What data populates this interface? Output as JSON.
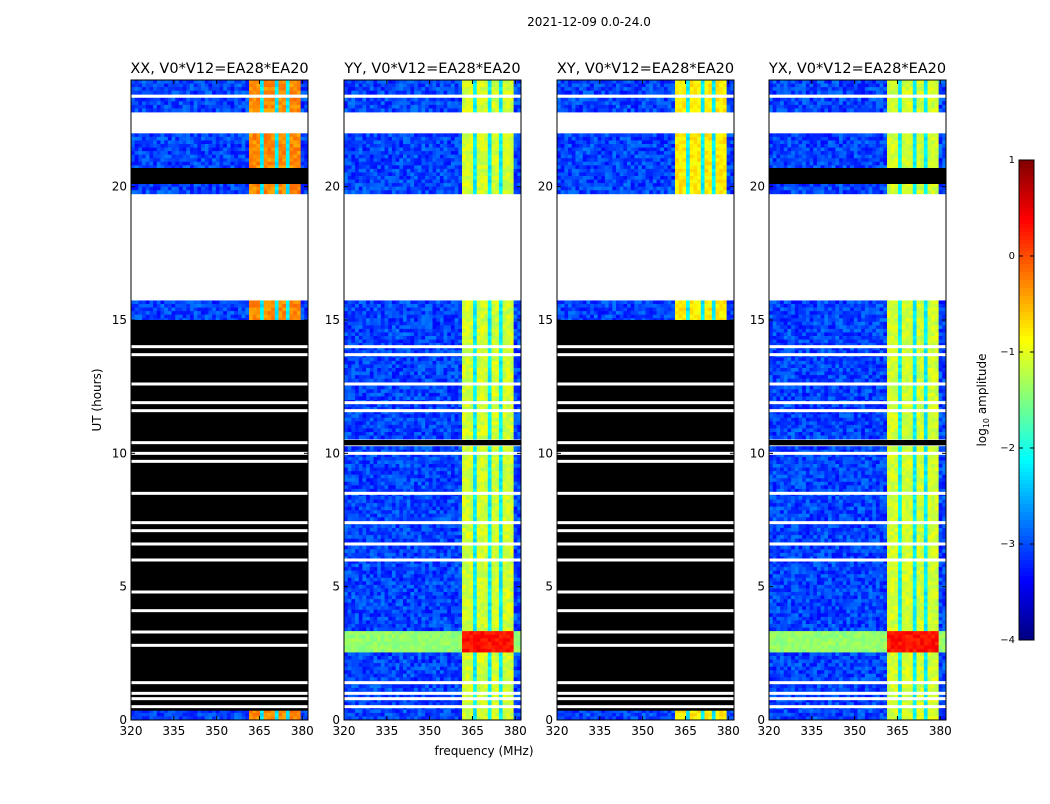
{
  "figure": {
    "suptitle": "2021-12-09 0.0-24.0",
    "ylabel": "UT (hours)",
    "xlabel": "frequency (MHz)"
  },
  "chart_data": {
    "type": "heatmap",
    "x_range": [
      320,
      382
    ],
    "y_range": [
      0,
      24
    ],
    "x_ticks": [
      320,
      335,
      350,
      365,
      380
    ],
    "y_ticks": [
      0,
      5,
      10,
      15,
      20
    ],
    "colormap": "jet",
    "colorbar": {
      "label_prefix": "log",
      "label_subscript": "10",
      "label_suffix": " amplitude",
      "range": [
        -4,
        1
      ],
      "ticks": [
        {
          "value": 1,
          "label": "1"
        },
        {
          "value": 0,
          "label": "0"
        },
        {
          "value": -1,
          "label": "−1"
        },
        {
          "value": -2,
          "label": "−2"
        },
        {
          "value": -3,
          "label": "−3"
        },
        {
          "value": -4,
          "label": "−4"
        }
      ]
    },
    "rfi_band_mhz": [
      361,
      380
    ],
    "rfi_channels_mhz": [
      366,
      371,
      375
    ],
    "panels": [
      {
        "title": "XX, V0*V12=EA28*EA20",
        "data_mask": [
          [
            0,
            0.35
          ],
          [
            15.0,
            15.8
          ],
          [
            19.8,
            22.0
          ],
          [
            22.8,
            23.3
          ],
          [
            23.5,
            24.0
          ]
        ],
        "black_ranges": [
          [
            0.35,
            15.0
          ],
          [
            20.1,
            20.7
          ]
        ],
        "white_lines": [
          0.5,
          0.8,
          1.0,
          1.4,
          2.8,
          3.3,
          4.1,
          4.8,
          6.0,
          6.6,
          7.1,
          7.4,
          8.5,
          9.7,
          10.0,
          10.4,
          11.6,
          11.9,
          12.6,
          13.7,
          14.0
        ],
        "rfi_amplitude": -0.3,
        "bright_rows": []
      },
      {
        "title": "YY, V0*V12=EA28*EA20",
        "data_mask": [
          [
            0,
            15.0
          ],
          [
            15.0,
            15.8
          ],
          [
            19.8,
            22.0
          ],
          [
            22.8,
            23.3
          ],
          [
            23.5,
            24.0
          ]
        ],
        "black_ranges": [
          [
            10.3,
            10.5
          ]
        ],
        "white_lines": [
          0.5,
          0.8,
          1.0,
          1.4,
          6.0,
          6.6,
          7.4,
          8.5,
          10.0,
          11.6,
          11.9,
          12.6,
          13.7,
          14.0
        ],
        "rfi_amplitude": -1.1,
        "bright_rows": [
          [
            2.6,
            3.3
          ]
        ]
      },
      {
        "title": "XY, V0*V12=EA28*EA20",
        "data_mask": [
          [
            0,
            0.35
          ],
          [
            15.0,
            15.8
          ],
          [
            19.8,
            22.0
          ],
          [
            22.8,
            23.3
          ],
          [
            23.5,
            24.0
          ]
        ],
        "black_ranges": [
          [
            0.35,
            15.0
          ]
        ],
        "white_lines": [
          0.5,
          0.8,
          1.0,
          1.4,
          2.8,
          3.3,
          4.1,
          4.8,
          6.0,
          6.6,
          7.1,
          7.4,
          8.5,
          9.7,
          10.0,
          10.4,
          11.6,
          11.9,
          12.6,
          13.7,
          14.0
        ],
        "rfi_amplitude": -0.8,
        "bright_rows": []
      },
      {
        "title": "YX, V0*V12=EA28*EA20",
        "data_mask": [
          [
            0,
            15.0
          ],
          [
            15.0,
            15.8
          ],
          [
            19.8,
            22.0
          ],
          [
            22.8,
            23.3
          ],
          [
            23.5,
            24.0
          ]
        ],
        "black_ranges": [
          [
            20.1,
            20.7
          ],
          [
            10.3,
            10.5
          ]
        ],
        "white_lines": [
          0.5,
          0.8,
          1.0,
          1.4,
          6.0,
          6.6,
          7.4,
          8.5,
          10.0,
          11.6,
          11.9,
          12.6,
          13.7,
          14.0
        ],
        "rfi_amplitude": -1.1,
        "bright_rows": [
          [
            2.6,
            3.3
          ]
        ]
      }
    ]
  }
}
